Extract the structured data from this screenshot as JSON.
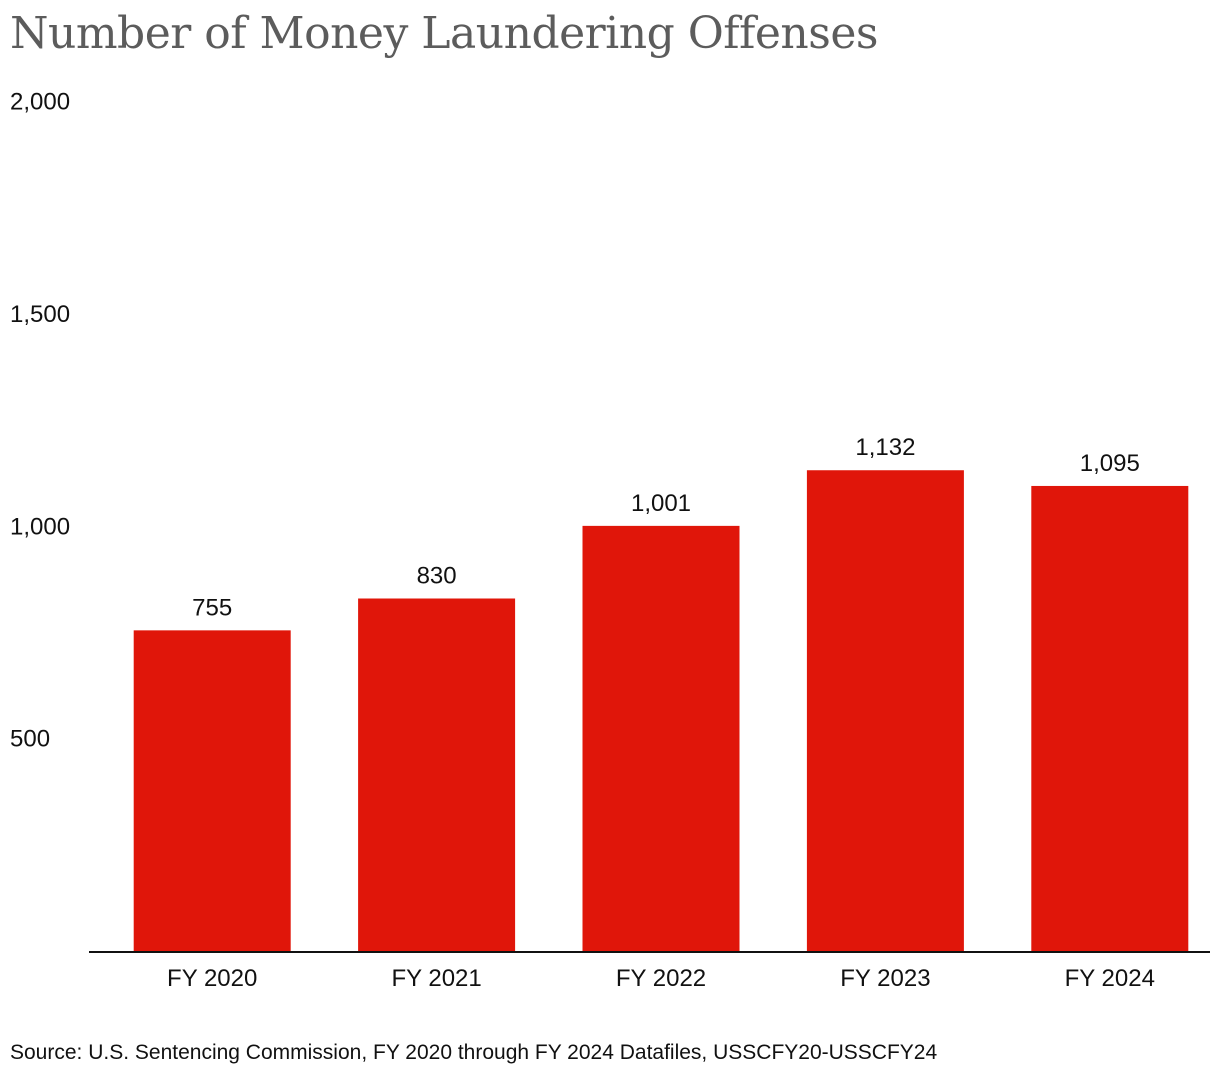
{
  "chart_data": {
    "type": "bar",
    "title": "Number of Money Laundering Offenses",
    "categories": [
      "FY 2020",
      "FY 2021",
      "FY 2022",
      "FY 2023",
      "FY 2024"
    ],
    "values": [
      755,
      830,
      1001,
      1132,
      1095
    ],
    "value_labels": [
      "755",
      "830",
      "1,001",
      "1,132",
      "1,095"
    ],
    "yticks": [
      500,
      1000,
      1500,
      2000
    ],
    "ytick_labels": [
      "500",
      "1,000",
      "1,500",
      "2,000"
    ],
    "ylim": [
      0,
      2000
    ],
    "xlabel": "",
    "ylabel": "",
    "grid": false,
    "legend": "none",
    "bar_color": "#e0160a",
    "source": "Source: U.S. Sentencing Commission, FY 2020 through FY 2024 Datafiles, USSCFY20-USSCFY24"
  }
}
